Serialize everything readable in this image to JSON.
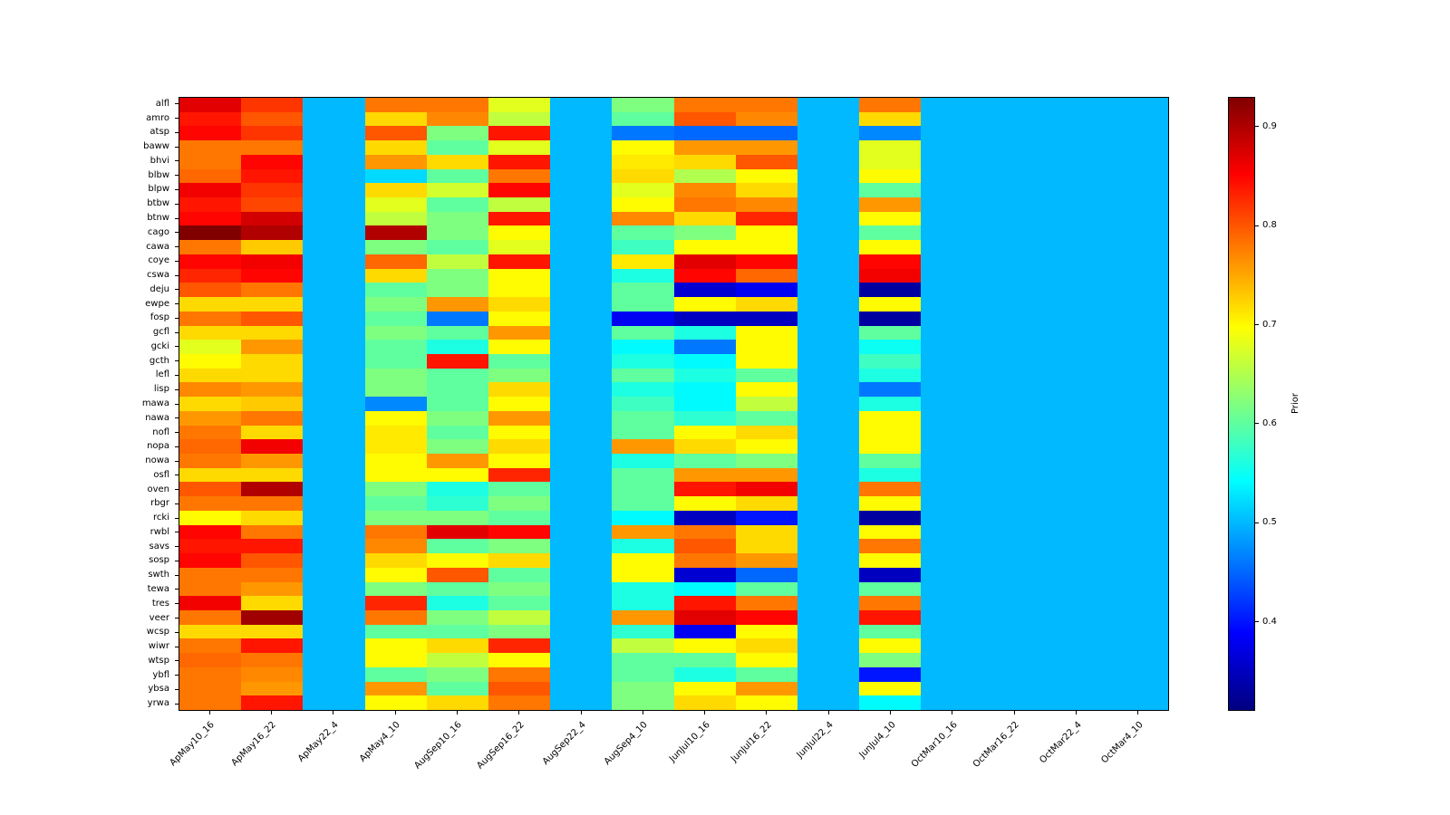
{
  "chart_data": {
    "type": "heatmap",
    "colormap": "jet",
    "title": "",
    "xlabel": "",
    "ylabel": "",
    "colorbar_label": "Prior",
    "colorbar_ticks": [
      0.4,
      0.5,
      0.6,
      0.7,
      0.8,
      0.9
    ],
    "vmin": 0.31,
    "vmax": 0.93,
    "x_categories": [
      "ApMay10_16",
      "ApMay16_22",
      "ApMay22_4",
      "ApMay4_10",
      "AugSep10_16",
      "AugSep16_22",
      "AugSep22_4",
      "AugSep4_10",
      "JunJul10_16",
      "JunJul16_22",
      "JunJul22_4",
      "JunJul4_10",
      "OctMar10_16",
      "OctMar16_22",
      "OctMar22_4",
      "OctMar4_10"
    ],
    "y_categories": [
      "alfl",
      "amro",
      "atsp",
      "baww",
      "bhvi",
      "blbw",
      "blpw",
      "btbw",
      "btnw",
      "cago",
      "cawa",
      "coye",
      "cswa",
      "deju",
      "ewpe",
      "fosp",
      "gcfl",
      "gcki",
      "gcth",
      "lefl",
      "lisp",
      "mawa",
      "nawa",
      "nofl",
      "nopa",
      "nowa",
      "osfl",
      "oven",
      "rbgr",
      "rcki",
      "rwbl",
      "savs",
      "sosp",
      "swth",
      "tewa",
      "tres",
      "veer",
      "wcsp",
      "wiwr",
      "wtsp",
      "ybfl",
      "ybsa",
      "yrwa"
    ],
    "values": [
      [
        0.87,
        0.82,
        0.5,
        0.78,
        0.78,
        0.68,
        0.5,
        0.62,
        0.78,
        0.78,
        0.5,
        0.78,
        0.5,
        0.5,
        0.5,
        0.5
      ],
      [
        0.84,
        0.8,
        0.5,
        0.72,
        0.77,
        0.66,
        0.5,
        0.6,
        0.8,
        0.77,
        0.5,
        0.72,
        0.5,
        0.5,
        0.5,
        0.5
      ],
      [
        0.85,
        0.82,
        0.5,
        0.8,
        0.62,
        0.84,
        0.5,
        0.46,
        0.45,
        0.45,
        0.5,
        0.47,
        0.5,
        0.5,
        0.5,
        0.5
      ],
      [
        0.78,
        0.78,
        0.5,
        0.72,
        0.6,
        0.68,
        0.5,
        0.7,
        0.76,
        0.76,
        0.5,
        0.68,
        0.5,
        0.5,
        0.5,
        0.5
      ],
      [
        0.78,
        0.85,
        0.5,
        0.76,
        0.72,
        0.84,
        0.5,
        0.71,
        0.72,
        0.8,
        0.5,
        0.68,
        0.5,
        0.5,
        0.5,
        0.5
      ],
      [
        0.79,
        0.84,
        0.5,
        0.52,
        0.6,
        0.78,
        0.5,
        0.72,
        0.65,
        0.7,
        0.5,
        0.7,
        0.5,
        0.5,
        0.5,
        0.5
      ],
      [
        0.86,
        0.82,
        0.5,
        0.72,
        0.67,
        0.85,
        0.5,
        0.68,
        0.77,
        0.72,
        0.5,
        0.6,
        0.5,
        0.5,
        0.5,
        0.5
      ],
      [
        0.84,
        0.81,
        0.5,
        0.68,
        0.6,
        0.66,
        0.5,
        0.7,
        0.78,
        0.77,
        0.5,
        0.76,
        0.5,
        0.5,
        0.5,
        0.5
      ],
      [
        0.85,
        0.88,
        0.5,
        0.66,
        0.62,
        0.84,
        0.5,
        0.77,
        0.72,
        0.83,
        0.5,
        0.7,
        0.5,
        0.5,
        0.5,
        0.5
      ],
      [
        0.93,
        0.9,
        0.5,
        0.9,
        0.62,
        0.7,
        0.5,
        0.6,
        0.62,
        0.7,
        0.5,
        0.6,
        0.5,
        0.5,
        0.5,
        0.5
      ],
      [
        0.78,
        0.73,
        0.5,
        0.62,
        0.6,
        0.68,
        0.5,
        0.58,
        0.7,
        0.7,
        0.5,
        0.7,
        0.5,
        0.5,
        0.5,
        0.5
      ],
      [
        0.85,
        0.86,
        0.5,
        0.79,
        0.66,
        0.84,
        0.5,
        0.71,
        0.87,
        0.85,
        0.5,
        0.85,
        0.5,
        0.5,
        0.5,
        0.5
      ],
      [
        0.83,
        0.85,
        0.5,
        0.72,
        0.62,
        0.7,
        0.5,
        0.56,
        0.85,
        0.79,
        0.5,
        0.86,
        0.5,
        0.5,
        0.5,
        0.5
      ],
      [
        0.8,
        0.78,
        0.5,
        0.6,
        0.62,
        0.7,
        0.5,
        0.6,
        0.36,
        0.38,
        0.5,
        0.33,
        0.5,
        0.5,
        0.5,
        0.5
      ],
      [
        0.72,
        0.72,
        0.5,
        0.62,
        0.76,
        0.72,
        0.5,
        0.6,
        0.7,
        0.72,
        0.5,
        0.7,
        0.5,
        0.5,
        0.5,
        0.5
      ],
      [
        0.78,
        0.8,
        0.5,
        0.6,
        0.46,
        0.7,
        0.5,
        0.38,
        0.35,
        0.35,
        0.5,
        0.33,
        0.5,
        0.5,
        0.5,
        0.5
      ],
      [
        0.72,
        0.72,
        0.5,
        0.62,
        0.6,
        0.76,
        0.5,
        0.6,
        0.56,
        0.7,
        0.5,
        0.6,
        0.5,
        0.5,
        0.5,
        0.5
      ],
      [
        0.68,
        0.76,
        0.5,
        0.6,
        0.56,
        0.7,
        0.5,
        0.54,
        0.46,
        0.7,
        0.5,
        0.55,
        0.5,
        0.5,
        0.5,
        0.5
      ],
      [
        0.7,
        0.72,
        0.5,
        0.6,
        0.84,
        0.6,
        0.5,
        0.56,
        0.54,
        0.7,
        0.5,
        0.58,
        0.5,
        0.5,
        0.5,
        0.5
      ],
      [
        0.72,
        0.72,
        0.5,
        0.62,
        0.6,
        0.62,
        0.5,
        0.6,
        0.56,
        0.6,
        0.5,
        0.56,
        0.5,
        0.5,
        0.5,
        0.5
      ],
      [
        0.77,
        0.76,
        0.5,
        0.62,
        0.6,
        0.72,
        0.5,
        0.56,
        0.54,
        0.7,
        0.5,
        0.46,
        0.5,
        0.5,
        0.5,
        0.5
      ],
      [
        0.72,
        0.73,
        0.5,
        0.47,
        0.6,
        0.7,
        0.5,
        0.58,
        0.54,
        0.66,
        0.5,
        0.56,
        0.5,
        0.5,
        0.5,
        0.5
      ],
      [
        0.76,
        0.78,
        0.5,
        0.7,
        0.62,
        0.76,
        0.5,
        0.6,
        0.57,
        0.6,
        0.5,
        0.7,
        0.5,
        0.5,
        0.5,
        0.5
      ],
      [
        0.78,
        0.72,
        0.5,
        0.71,
        0.6,
        0.7,
        0.5,
        0.6,
        0.7,
        0.72,
        0.5,
        0.7,
        0.5,
        0.5,
        0.5,
        0.5
      ],
      [
        0.79,
        0.86,
        0.5,
        0.71,
        0.62,
        0.72,
        0.5,
        0.76,
        0.72,
        0.7,
        0.5,
        0.7,
        0.5,
        0.5,
        0.5,
        0.5
      ],
      [
        0.78,
        0.76,
        0.5,
        0.7,
        0.76,
        0.7,
        0.5,
        0.56,
        0.6,
        0.62,
        0.5,
        0.6,
        0.5,
        0.5,
        0.5,
        0.5
      ],
      [
        0.72,
        0.72,
        0.5,
        0.7,
        0.7,
        0.83,
        0.5,
        0.6,
        0.76,
        0.76,
        0.5,
        0.56,
        0.5,
        0.5,
        0.5,
        0.5
      ],
      [
        0.8,
        0.9,
        0.5,
        0.62,
        0.56,
        0.6,
        0.5,
        0.6,
        0.84,
        0.86,
        0.5,
        0.78,
        0.5,
        0.5,
        0.5,
        0.5
      ],
      [
        0.78,
        0.78,
        0.5,
        0.6,
        0.57,
        0.62,
        0.5,
        0.6,
        0.7,
        0.72,
        0.5,
        0.7,
        0.5,
        0.5,
        0.5,
        0.5
      ],
      [
        0.7,
        0.72,
        0.5,
        0.62,
        0.62,
        0.6,
        0.5,
        0.54,
        0.35,
        0.4,
        0.5,
        0.33,
        0.5,
        0.5,
        0.5,
        0.5
      ],
      [
        0.85,
        0.78,
        0.5,
        0.78,
        0.87,
        0.85,
        0.5,
        0.76,
        0.78,
        0.72,
        0.5,
        0.7,
        0.5,
        0.5,
        0.5,
        0.5
      ],
      [
        0.84,
        0.84,
        0.5,
        0.77,
        0.6,
        0.62,
        0.5,
        0.56,
        0.8,
        0.72,
        0.5,
        0.78,
        0.5,
        0.5,
        0.5,
        0.5
      ],
      [
        0.85,
        0.8,
        0.5,
        0.72,
        0.7,
        0.72,
        0.5,
        0.7,
        0.78,
        0.76,
        0.5,
        0.7,
        0.5,
        0.5,
        0.5,
        0.5
      ],
      [
        0.78,
        0.78,
        0.5,
        0.7,
        0.8,
        0.6,
        0.5,
        0.7,
        0.36,
        0.45,
        0.5,
        0.35,
        0.5,
        0.5,
        0.5,
        0.5
      ],
      [
        0.78,
        0.76,
        0.5,
        0.62,
        0.6,
        0.62,
        0.5,
        0.56,
        0.54,
        0.6,
        0.5,
        0.6,
        0.5,
        0.5,
        0.5,
        0.5
      ],
      [
        0.86,
        0.72,
        0.5,
        0.83,
        0.56,
        0.6,
        0.5,
        0.56,
        0.84,
        0.78,
        0.5,
        0.78,
        0.5,
        0.5,
        0.5,
        0.5
      ],
      [
        0.78,
        0.91,
        0.5,
        0.78,
        0.62,
        0.66,
        0.5,
        0.76,
        0.87,
        0.85,
        0.5,
        0.84,
        0.5,
        0.5,
        0.5,
        0.5
      ],
      [
        0.72,
        0.72,
        0.5,
        0.6,
        0.6,
        0.62,
        0.5,
        0.57,
        0.38,
        0.7,
        0.5,
        0.6,
        0.5,
        0.5,
        0.5,
        0.5
      ],
      [
        0.78,
        0.84,
        0.5,
        0.7,
        0.72,
        0.83,
        0.5,
        0.66,
        0.7,
        0.72,
        0.5,
        0.7,
        0.5,
        0.5,
        0.5,
        0.5
      ],
      [
        0.79,
        0.78,
        0.5,
        0.7,
        0.66,
        0.7,
        0.5,
        0.6,
        0.6,
        0.7,
        0.5,
        0.62,
        0.5,
        0.5,
        0.5,
        0.5
      ],
      [
        0.78,
        0.77,
        0.5,
        0.6,
        0.62,
        0.78,
        0.5,
        0.6,
        0.56,
        0.6,
        0.5,
        0.4,
        0.5,
        0.5,
        0.5,
        0.5
      ],
      [
        0.78,
        0.76,
        0.5,
        0.76,
        0.6,
        0.8,
        0.5,
        0.62,
        0.7,
        0.76,
        0.5,
        0.7,
        0.5,
        0.5,
        0.5,
        0.5
      ],
      [
        0.78,
        0.84,
        0.5,
        0.7,
        0.72,
        0.78,
        0.5,
        0.62,
        0.72,
        0.7,
        0.5,
        0.54,
        0.5,
        0.5,
        0.5,
        0.5
      ]
    ]
  }
}
